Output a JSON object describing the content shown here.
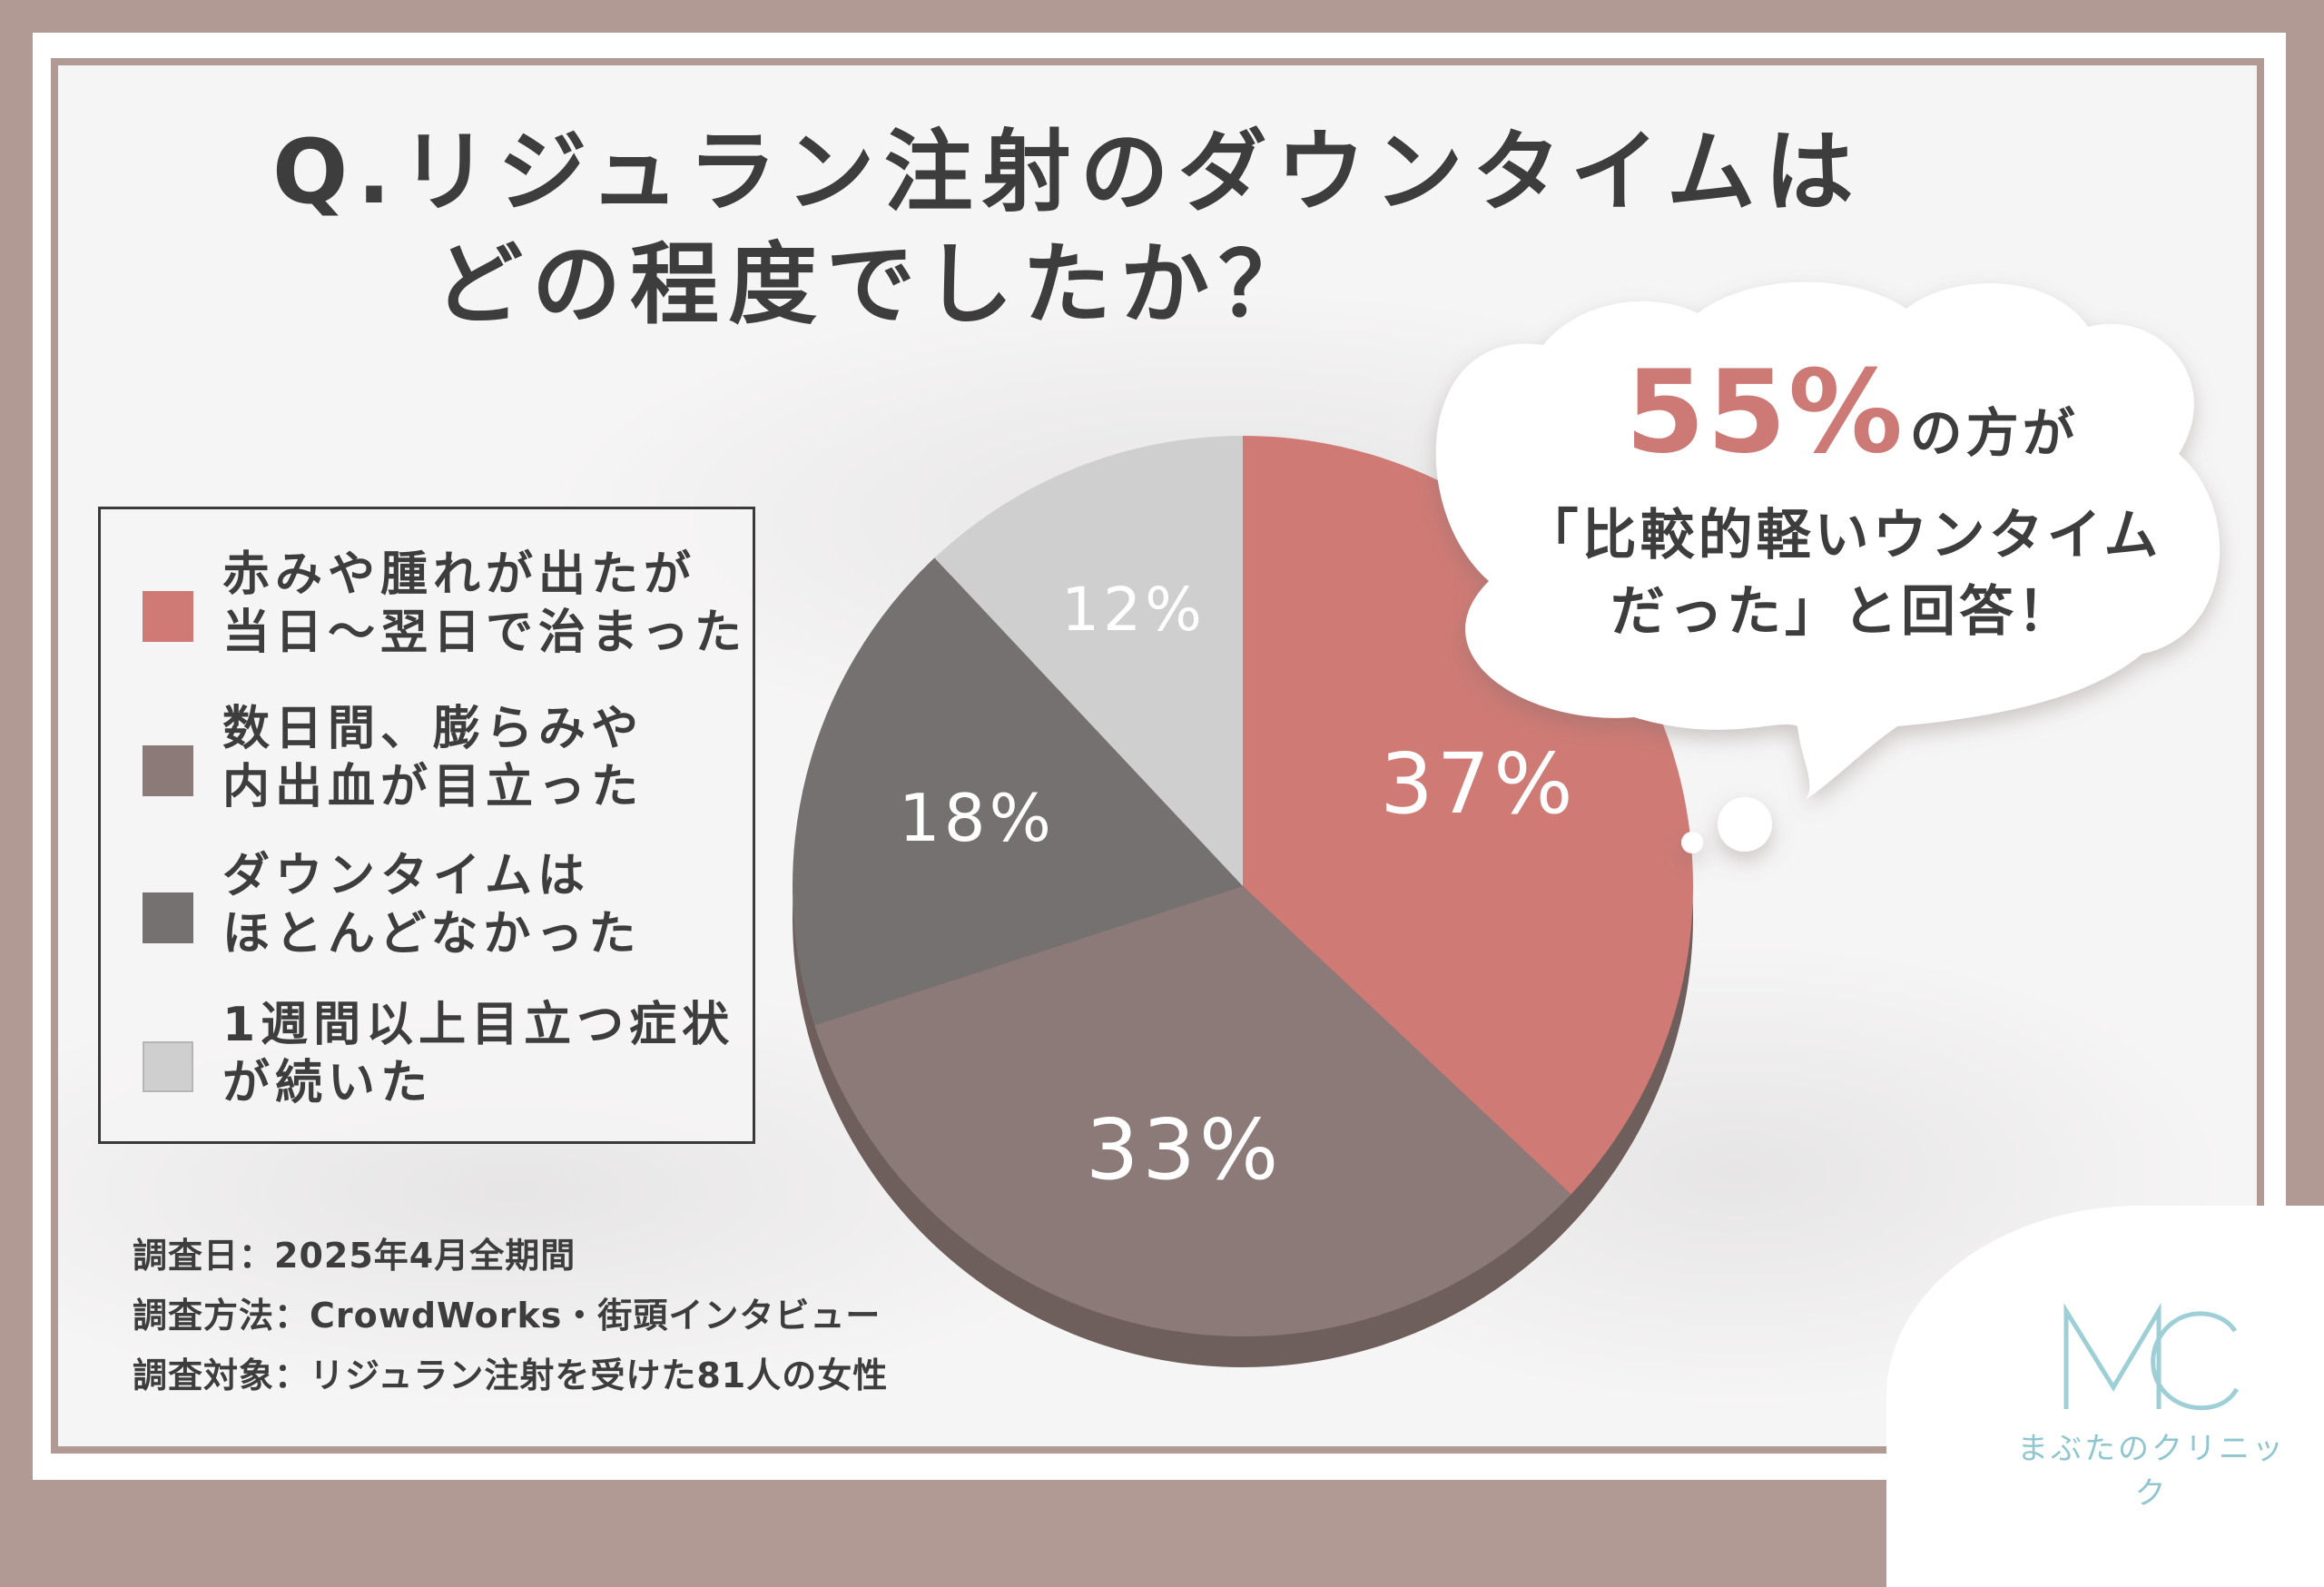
{
  "title": {
    "line1": "Q.リジュラン注射のダウンタイムは",
    "line2": "どの程度でしたか？"
  },
  "chart_data": {
    "type": "pie",
    "categories": [
      "赤みや腫れが出たが当日〜翌日で治まった",
      "数日間、膨らみや内出血が目立った",
      "ダウンタイムはほとんどなかった",
      "1週間以上目立つ症状が続いた"
    ],
    "values": [
      37,
      33,
      18,
      12
    ],
    "data_labels": [
      "37%",
      "33%",
      "18%",
      "12%"
    ],
    "colors": [
      "#cf7a75",
      "#8c7a78",
      "#757170",
      "#cfcfcf"
    ],
    "start_angle_deg": 0,
    "direction": "clockwise",
    "legend_position": "left"
  },
  "legend": {
    "items": [
      {
        "line1": "赤みや腫れが出たが",
        "line2": "当日〜翌日で治まった",
        "color": "#cf7a75"
      },
      {
        "line1": "数日間、膨らみや",
        "line2": "内出血が目立った",
        "color": "#8c7a78"
      },
      {
        "line1": "ダウンタイムは",
        "line2": "ほとんどなかった",
        "color": "#757170"
      },
      {
        "line1": "1週間以上目立つ症状",
        "line2": "が続いた",
        "color": "#cfcfcf"
      }
    ]
  },
  "callout": {
    "percent": "55%",
    "suffix": "の方が",
    "line2": "「比較的軽いウンタイム",
    "line3": "だった」と回答！"
  },
  "notes": {
    "date": "調査日：2025年4月全期間",
    "method": "調査方法：CrowdWorks・街頭インタビュー",
    "target": "調査対象：リジュラン注射を受けた81人の女性"
  },
  "logo": {
    "mark": "MC",
    "name": "まぶたのクリニック",
    "color": "#8fc6cf"
  }
}
